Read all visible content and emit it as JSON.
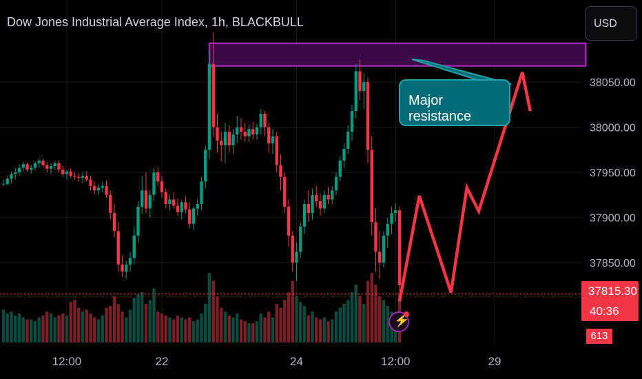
{
  "header": {
    "title": "Dow Jones Industrial Average Index, 1h, BLACKBULL"
  },
  "currency_button": {
    "label": "USD"
  },
  "last_price": {
    "value": "37815.30",
    "countdown": "40:36"
  },
  "volume_label": {
    "value": "613"
  },
  "annotation": {
    "label": "Major resistance"
  },
  "colors": {
    "up": "#089981",
    "down": "#f23645",
    "background": "#000000",
    "zone_fill": "#3a0a46",
    "zone_border": "#9c27b0",
    "callout_fill": "#006d76",
    "projection": "#f23645",
    "grid": "#1a1a1a"
  },
  "chart_data": {
    "type": "candlestick",
    "title": "Dow Jones Industrial Average Index, 1h, BLACKBULL",
    "currency": "USD",
    "y_ticks": [
      37850,
      37900,
      37950,
      38000,
      38050
    ],
    "y_tick_labels": [
      "37850.00",
      "37900.00",
      "37950.00",
      "38000.00",
      "38050.00"
    ],
    "ylim": [
      37768,
      38160
    ],
    "x_tick_labels": [
      "12:00",
      "22",
      "24",
      "12:00",
      "29"
    ],
    "x_tick_index": [
      16,
      40,
      74,
      99,
      124
    ],
    "last_price": 37815.3,
    "resistance_zone": [
      38068,
      38093
    ],
    "resistance_zone_index": [
      52,
      147
    ],
    "projection": [
      {
        "i": 100,
        "price": 37807
      },
      {
        "i": 105,
        "price": 37924
      },
      {
        "i": 113,
        "price": 37817
      },
      {
        "i": 117,
        "price": 37933
      },
      {
        "i": 120,
        "price": 37907
      },
      {
        "i": 131,
        "price": 38061
      },
      {
        "i": 133,
        "price": 38018
      }
    ],
    "callout_text": "Major resistance",
    "candles": [
      [
        37937,
        37942,
        37935,
        37937,
        1.7
      ],
      [
        37937,
        37946,
        37936,
        37943,
        1.5
      ],
      [
        37943,
        37951,
        37938,
        37948,
        1.6
      ],
      [
        37948,
        37955,
        37942,
        37950,
        1.4
      ],
      [
        37950,
        37959,
        37946,
        37955,
        1.5
      ],
      [
        37955,
        37962,
        37951,
        37959,
        1.3
      ],
      [
        37959,
        37961,
        37951,
        37953,
        1.2
      ],
      [
        37953,
        37958,
        37949,
        37955,
        1.2
      ],
      [
        37955,
        37962,
        37952,
        37960,
        1.1
      ],
      [
        37960,
        37966,
        37955,
        37963,
        1.3
      ],
      [
        37963,
        37965,
        37955,
        37958,
        1.4
      ],
      [
        37958,
        37961,
        37950,
        37954,
        1.6
      ],
      [
        37954,
        37960,
        37948,
        37957,
        1.5
      ],
      [
        37957,
        37962,
        37953,
        37960,
        1.3
      ],
      [
        37960,
        37963,
        37950,
        37953,
        1.4
      ],
      [
        37953,
        37957,
        37945,
        37948,
        1.5
      ],
      [
        37948,
        37953,
        37942,
        37951,
        1.4
      ],
      [
        37951,
        37955,
        37944,
        37946,
        2.1
      ],
      [
        37946,
        37950,
        37942,
        37945,
        2.2
      ],
      [
        37945,
        37949,
        37940,
        37944,
        1.8
      ],
      [
        37944,
        37950,
        37938,
        37946,
        1.6
      ],
      [
        37946,
        37951,
        37940,
        37942,
        1.7
      ],
      [
        37942,
        37946,
        37930,
        37935,
        1.5
      ],
      [
        37935,
        37940,
        37926,
        37930,
        1.3
      ],
      [
        37930,
        37937,
        37925,
        37933,
        1.2
      ],
      [
        37933,
        37939,
        37928,
        37935,
        1.4
      ],
      [
        37935,
        37941,
        37922,
        37925,
        1.8
      ],
      [
        37925,
        37930,
        37898,
        37905,
        1.9
      ],
      [
        37905,
        37915,
        37878,
        37885,
        2.4
      ],
      [
        37885,
        37895,
        37840,
        37848,
        2.0
      ],
      [
        37848,
        37858,
        37834,
        37840,
        1.6
      ],
      [
        37840,
        37852,
        37832,
        37848,
        1.3
      ],
      [
        37848,
        37862,
        37840,
        37855,
        1.7
      ],
      [
        37855,
        37890,
        37848,
        37880,
        2.3
      ],
      [
        37880,
        37918,
        37872,
        37912,
        2.5
      ],
      [
        37912,
        37946,
        37904,
        37930,
        2.6
      ],
      [
        37930,
        37950,
        37905,
        37910,
        2.0
      ],
      [
        37910,
        37930,
        37900,
        37925,
        2.2
      ],
      [
        37925,
        37955,
        37918,
        37950,
        2.8
      ],
      [
        37950,
        37956,
        37935,
        37940,
        1.6
      ],
      [
        37940,
        37946,
        37922,
        37928,
        1.5
      ],
      [
        37928,
        37932,
        37910,
        37915,
        1.4
      ],
      [
        37915,
        37925,
        37908,
        37920,
        1.3
      ],
      [
        37920,
        37928,
        37910,
        37913,
        1.2
      ],
      [
        37913,
        37921,
        37902,
        37906,
        1.4
      ],
      [
        37906,
        37920,
        37898,
        37917,
        1.3
      ],
      [
        37917,
        37923,
        37905,
        37909,
        1.2
      ],
      [
        37909,
        37917,
        37888,
        37893,
        1.3
      ],
      [
        37893,
        37912,
        37886,
        37910,
        1.1
      ],
      [
        37910,
        37920,
        37902,
        37915,
        1.2
      ],
      [
        37915,
        37945,
        37908,
        37940,
        1.5
      ],
      [
        37940,
        37980,
        37932,
        37975,
        2.0
      ],
      [
        37975,
        38085,
        37965,
        38070,
        3.6
      ],
      [
        38070,
        38105,
        37990,
        38000,
        3.2
      ],
      [
        38000,
        38015,
        37972,
        37985,
        2.4
      ],
      [
        37985,
        37995,
        37962,
        37980,
        1.8
      ],
      [
        37980,
        38005,
        37960,
        37995,
        1.6
      ],
      [
        37995,
        38002,
        37972,
        37980,
        1.4
      ],
      [
        37980,
        37998,
        37970,
        37992,
        1.3
      ],
      [
        37992,
        38013,
        37982,
        38000,
        1.5
      ],
      [
        38000,
        38010,
        37986,
        37995,
        1.2
      ],
      [
        37995,
        38005,
        37984,
        37990,
        1.1
      ],
      [
        37990,
        38003,
        37984,
        37998,
        1.0
      ],
      [
        37998,
        38006,
        37986,
        37992,
        1.0
      ],
      [
        37992,
        38004,
        37986,
        38000,
        1.1
      ],
      [
        38000,
        38020,
        37992,
        38015,
        1.5
      ],
      [
        38015,
        38018,
        37990,
        38000,
        1.3
      ],
      [
        38000,
        38005,
        37972,
        37982,
        1.6
      ],
      [
        37982,
        37998,
        37970,
        37990,
        1.3
      ],
      [
        37990,
        37995,
        37950,
        37958,
        2.0
      ],
      [
        37958,
        37970,
        37930,
        37945,
        1.8
      ],
      [
        37945,
        37950,
        37905,
        37912,
        2.2
      ],
      [
        37912,
        37920,
        37868,
        37880,
        2.6
      ],
      [
        37880,
        37885,
        37840,
        37850,
        3.2
      ],
      [
        37850,
        37872,
        37830,
        37862,
        2.4
      ],
      [
        37862,
        37895,
        37855,
        37890,
        2.1
      ],
      [
        37890,
        37920,
        37882,
        37915,
        1.9
      ],
      [
        37915,
        37930,
        37895,
        37905,
        1.4
      ],
      [
        37905,
        37932,
        37898,
        37925,
        1.6
      ],
      [
        37925,
        37935,
        37912,
        37918,
        1.3
      ],
      [
        37918,
        37926,
        37902,
        37910,
        1.2
      ],
      [
        37910,
        37930,
        37905,
        37925,
        1.3
      ],
      [
        37925,
        37934,
        37915,
        37920,
        1.1
      ],
      [
        37920,
        37935,
        37914,
        37930,
        1.2
      ],
      [
        37930,
        37950,
        37925,
        37945,
        1.6
      ],
      [
        37945,
        37968,
        37940,
        37963,
        1.8
      ],
      [
        37963,
        37982,
        37955,
        37976,
        2.0
      ],
      [
        37976,
        38002,
        37970,
        37995,
        2.2
      ],
      [
        37995,
        38025,
        37985,
        38018,
        2.6
      ],
      [
        38018,
        38070,
        38010,
        38062,
        3.0
      ],
      [
        38062,
        38075,
        38030,
        38040,
        2.4
      ],
      [
        38040,
        38060,
        38020,
        38050,
        2.0
      ],
      [
        38050,
        38055,
        37960,
        37975,
        3.2
      ],
      [
        37975,
        37990,
        37880,
        37895,
        3.6
      ],
      [
        37895,
        37910,
        37840,
        37862,
        3.0
      ],
      [
        37862,
        37885,
        37832,
        37850,
        2.4
      ],
      [
        37850,
        37885,
        37845,
        37880,
        2.2
      ],
      [
        37880,
        37900,
        37866,
        37893,
        1.9
      ],
      [
        37893,
        37912,
        37882,
        37905,
        1.6
      ],
      [
        37905,
        37916,
        37895,
        37908,
        1.3
      ],
      [
        37908,
        37912,
        37818,
        37825,
        2.6
      ]
    ]
  }
}
